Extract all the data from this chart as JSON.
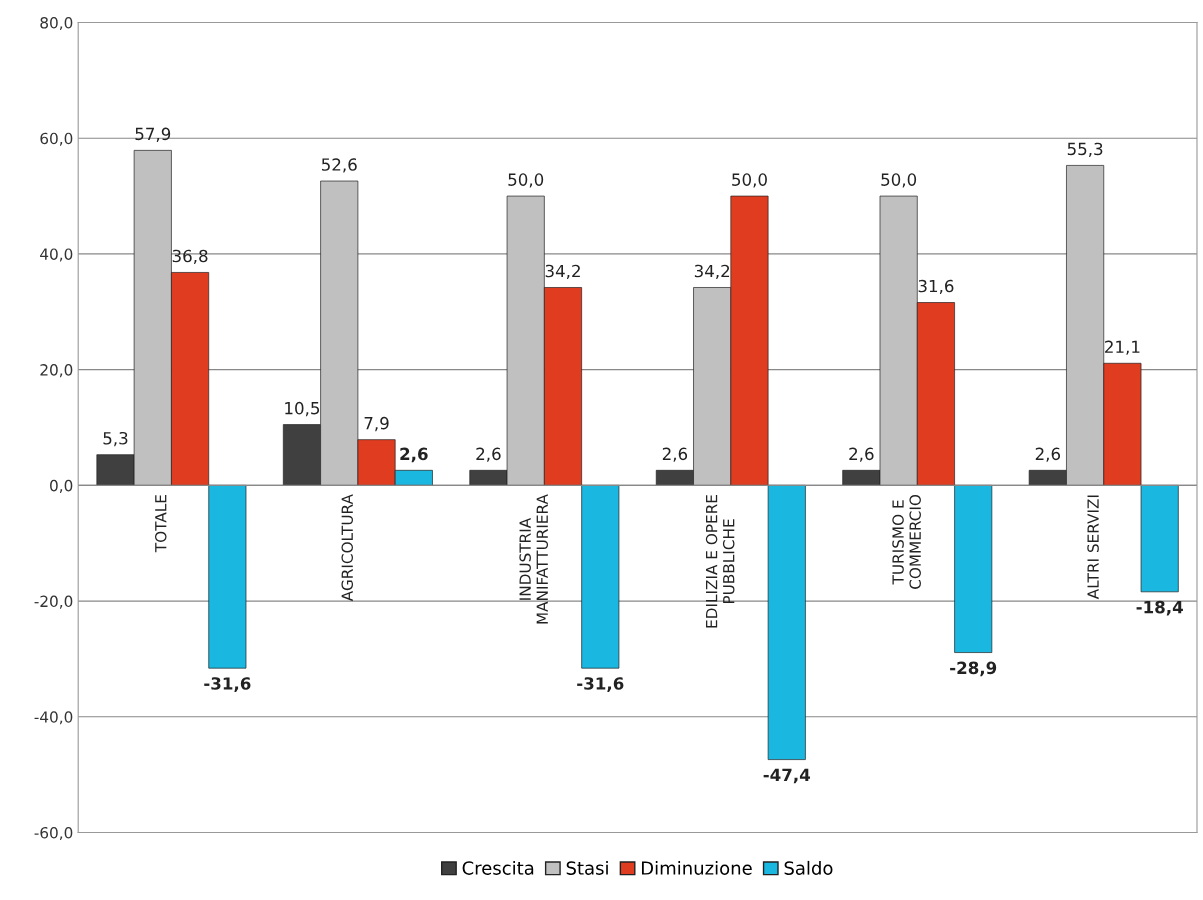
{
  "chart_data": {
    "type": "bar",
    "categories": [
      "TOTALE",
      "AGRICOLTURA",
      "INDUSTRIA\nMANIFATTURIERA",
      "EDILIZIA E OPERE\nPUBBLICHE",
      "TURISMO E\nCOMMERCIO",
      "ALTRI SERVIZI"
    ],
    "series": [
      {
        "name": "Crescita",
        "color": "#404040",
        "values": [
          5.3,
          10.5,
          2.6,
          2.6,
          2.6,
          2.6
        ],
        "value_labels": [
          "5,3",
          "10,5",
          "2,6",
          "2,6",
          "2,6",
          "2,6"
        ]
      },
      {
        "name": "Stasi",
        "color": "#c0c0c0",
        "values": [
          57.9,
          52.6,
          50.0,
          34.2,
          50.0,
          55.3
        ],
        "value_labels": [
          "57,9",
          "52,6",
          "50,0",
          "34,2",
          "50,0",
          "55,3"
        ]
      },
      {
        "name": "Diminuzione",
        "color": "#e03c20",
        "values": [
          36.8,
          7.9,
          34.2,
          50.0,
          31.6,
          21.1
        ],
        "value_labels": [
          "36,8",
          "7,9",
          "34,2",
          "50,0",
          "31,6",
          "21,1"
        ]
      },
      {
        "name": "Saldo",
        "color": "#1ab8e0",
        "values": [
          -31.6,
          2.6,
          -31.6,
          -47.4,
          -28.9,
          -18.4
        ],
        "value_labels": [
          "-31,6",
          "2,6",
          "-31,6",
          "-47,4",
          "-28,9",
          "-18,4"
        ]
      }
    ],
    "ylim": [
      -60,
      80
    ],
    "yticks": [
      {
        "value": -60,
        "label": "-60,0"
      },
      {
        "value": -40,
        "label": "-40,0"
      },
      {
        "value": -20,
        "label": "-20,0"
      },
      {
        "value": 0,
        "label": "0,0"
      },
      {
        "value": 20,
        "label": "20,0"
      },
      {
        "value": 40,
        "label": "40,0"
      },
      {
        "value": 60,
        "label": "60,0"
      },
      {
        "value": 80,
        "label": "80,0"
      }
    ],
    "grid": "y",
    "legend": "bottom"
  }
}
